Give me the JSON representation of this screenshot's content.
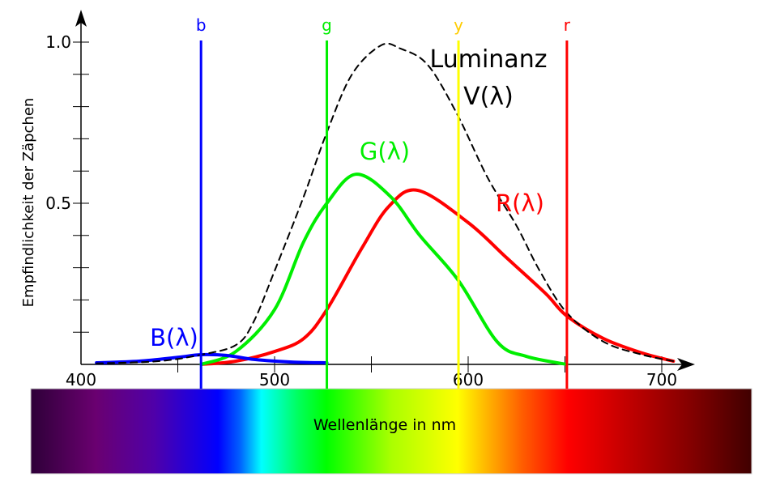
{
  "chart_data": {
    "type": "line",
    "title": "",
    "xlabel": "Wellenlänge in nm",
    "ylabel": "Empfindlichkeit der Zäpchen",
    "xlim": [
      400,
      715
    ],
    "ylim": [
      0,
      1.05
    ],
    "grid": false,
    "x_ticks": [
      "400",
      "500",
      "600",
      "700"
    ],
    "y_ticks": [
      "0.5",
      "1.0"
    ],
    "colors": {
      "B": "#0000ff",
      "G": "#00ee00",
      "R": "#ff0000",
      "V": "#000000",
      "y_line": "#ffff00"
    },
    "series": [
      {
        "name": "B(λ)",
        "key": "B",
        "x": [
          408,
          430,
          450,
          462,
          475,
          490,
          510,
          527
        ],
        "y": [
          0.005,
          0.01,
          0.022,
          0.03,
          0.028,
          0.015,
          0.007,
          0.005
        ]
      },
      {
        "name": "G(λ)",
        "key": "G",
        "x": [
          462,
          480,
          500,
          515,
          527,
          542,
          560,
          575,
          595,
          615,
          630,
          651
        ],
        "y": [
          0.0,
          0.04,
          0.17,
          0.38,
          0.5,
          0.59,
          0.52,
          0.4,
          0.26,
          0.07,
          0.025,
          0.0
        ]
      },
      {
        "name": "R(λ)",
        "key": "R",
        "x": [
          462,
          480,
          500,
          515,
          527,
          545,
          559,
          574,
          600,
          620,
          640,
          651,
          670,
          690,
          706
        ],
        "y": [
          0.0,
          0.01,
          0.04,
          0.08,
          0.17,
          0.36,
          0.49,
          0.54,
          0.44,
          0.33,
          0.22,
          0.15,
          0.08,
          0.035,
          0.01
        ]
      },
      {
        "name": "Luminanz V(λ)",
        "key": "V",
        "dashed": true,
        "x": [
          408,
          440,
          462,
          480,
          489,
          500,
          515,
          527,
          540,
          555,
          565,
          579,
          594,
          610,
          625,
          637,
          651,
          670,
          690,
          706
        ],
        "y": [
          0.003,
          0.01,
          0.03,
          0.06,
          0.13,
          0.29,
          0.52,
          0.72,
          0.9,
          0.99,
          0.98,
          0.93,
          0.78,
          0.58,
          0.43,
          0.29,
          0.16,
          0.07,
          0.03,
          0.01
        ]
      }
    ],
    "markers": [
      {
        "label": "b",
        "x": 462,
        "color": "#0000ff"
      },
      {
        "label": "g",
        "x": 527,
        "color": "#00ee00"
      },
      {
        "label": "y",
        "x": 595,
        "color": "#ffff00",
        "label_color": "#ffcc00"
      },
      {
        "label": "r",
        "x": 651,
        "color": "#ff0000"
      }
    ],
    "annotations": {
      "B": "B(λ)",
      "G": "G(λ)",
      "R": "R(λ)",
      "V_line1": "Luminanz",
      "V_line2": "V(λ)"
    }
  }
}
